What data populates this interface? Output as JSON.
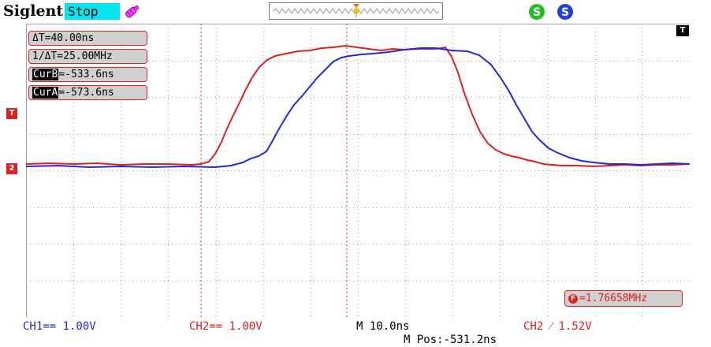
{
  "header": {
    "brand": "Siglent",
    "status": "Stop",
    "icons": [
      "probe-icon",
      "run-state-icon",
      "usb-icon"
    ]
  },
  "cursors": {
    "delta_t": "ΔT=40.00ns",
    "inv_delta_t": "1/ΔT=25.00MHz",
    "cur_b_tag": "CurB",
    "cur_b_value": "=-533.6ns",
    "cur_a_tag": "CurA",
    "cur_a_value": "=-573.6ns"
  },
  "markers": {
    "trigger_position": "T",
    "trigger_level": "T",
    "channel_ref": "2"
  },
  "frequency": {
    "icon": "F",
    "value": "=1.76658MHz"
  },
  "footer": {
    "ch1": "CH1== 1.00V",
    "ch2": "CH2== 1.00V",
    "timebase": "M 10.0ns",
    "trigger": "CH2 ⁄ 1.52V",
    "position": "M Pos:-531.2ns"
  },
  "colors": {
    "ch1": "#1e2cd8",
    "ch2": "#e02020",
    "status_bg": "#00e5f0",
    "grid": "#a0a0a0"
  }
}
